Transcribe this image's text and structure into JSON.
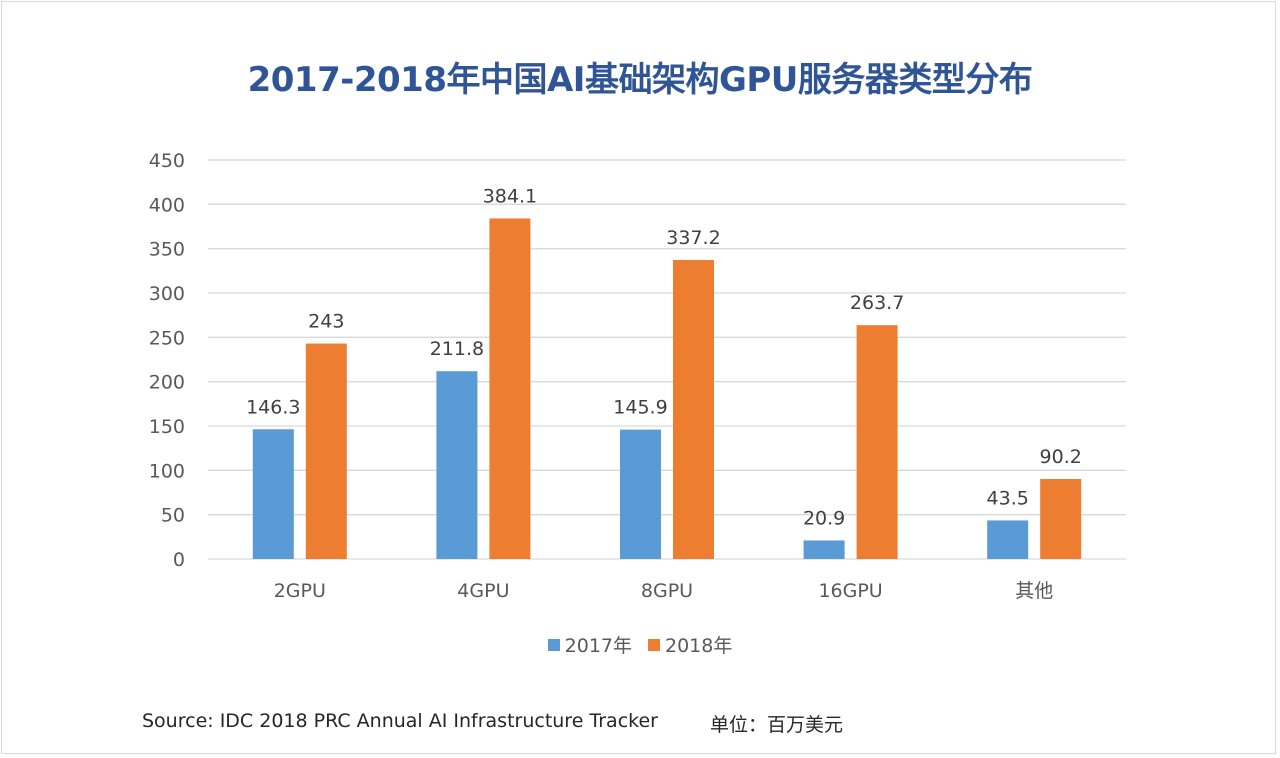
{
  "chart_data": {
    "type": "bar",
    "title": "2017-2018年中国AI基础架构GPU服务器类型分布",
    "xlabel": "",
    "ylabel": "",
    "categories": [
      "2GPU",
      "4GPU",
      "8GPU",
      "16GPU",
      "其他"
    ],
    "series": [
      {
        "name": "2017年",
        "color": "#5b9bd5",
        "values": [
          146.3,
          211.8,
          145.9,
          20.9,
          43.5
        ]
      },
      {
        "name": "2018年",
        "color": "#ed7d31",
        "values": [
          243,
          384.1,
          337.2,
          263.7,
          90.2
        ]
      }
    ],
    "data_labels": [
      [
        "146.3",
        "211.8",
        "145.9",
        "20.9",
        "43.5"
      ],
      [
        "243",
        "384.1",
        "337.2",
        "263.7",
        "90.2"
      ]
    ],
    "ylim": [
      0,
      450
    ],
    "yticks": [
      0,
      50,
      100,
      150,
      200,
      250,
      300,
      350,
      400,
      450
    ],
    "ytick_labels": [
      "0",
      "50",
      "100",
      "150",
      "200",
      "250",
      "300",
      "350",
      "400",
      "450"
    ],
    "grid": true,
    "legend_position": "bottom-center"
  },
  "footer": {
    "source": "Source: IDC 2018 PRC Annual AI Infrastructure Tracker",
    "unit": "单位：百万美元"
  }
}
